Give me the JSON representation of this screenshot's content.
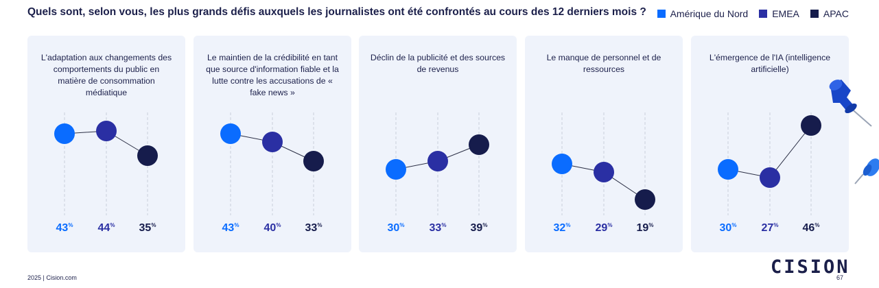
{
  "title": "Quels sont, selon vous, les plus grands défis auxquels les journalistes ont été confrontés au cours des 12 derniers mois ?",
  "legend": [
    {
      "label": "Amérique du Nord",
      "color": "#0a6cff"
    },
    {
      "label": "EMEA",
      "color": "#2a2fa3"
    },
    {
      "label": "APAC",
      "color": "#161c4c"
    }
  ],
  "percent_suffix": "%",
  "chart_data": {
    "type": "line",
    "series_names": [
      "Amérique du Nord",
      "EMEA",
      "APAC"
    ],
    "colors": [
      "#0a6cff",
      "#2a2fa3",
      "#161c4c"
    ],
    "ylim": [
      15,
      50
    ],
    "panels": [
      {
        "title": "L'adaptation aux changements des comportements du public en matière de consommation médiatique",
        "values": [
          43,
          44,
          35
        ]
      },
      {
        "title": "Le maintien de la crédibilité en tant que source d'information fiable et la lutte contre les accusations de « fake news »",
        "values": [
          43,
          40,
          33
        ]
      },
      {
        "title": "Déclin de la publicité et des sources de revenus",
        "values": [
          30,
          33,
          39
        ]
      },
      {
        "title": "Le manque de personnel et de ressources",
        "values": [
          32,
          29,
          19
        ]
      },
      {
        "title": "L'émergence de l'IA (intelligence artificielle)",
        "values": [
          30,
          27,
          46
        ]
      }
    ]
  },
  "footer": {
    "source": "2025 | Cision.com",
    "brand": "CISION",
    "page": "67"
  }
}
